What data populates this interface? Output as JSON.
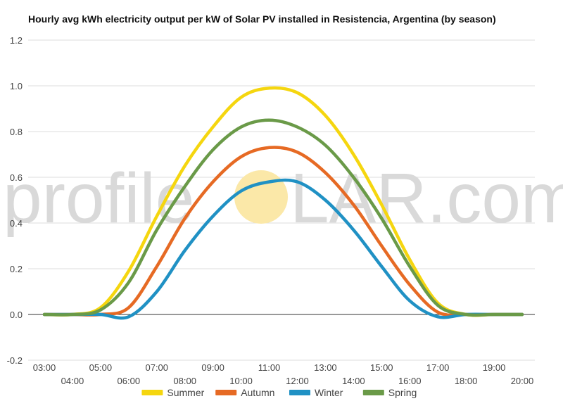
{
  "chart_data": {
    "type": "line",
    "title": "Hourly avg kWh electricity output per kW of Solar PV installed in Resistencia, Argentina (by season)",
    "xlabel": "",
    "ylabel": "",
    "x": [
      "03:00",
      "04:00",
      "05:00",
      "06:00",
      "07:00",
      "08:00",
      "09:00",
      "10:00",
      "11:00",
      "12:00",
      "13:00",
      "14:00",
      "15:00",
      "16:00",
      "17:00",
      "18:00",
      "19:00",
      "20:00"
    ],
    "ylim": [
      -0.2,
      1.2
    ],
    "yticks": [
      "-0.2",
      "0.0",
      "0.2",
      "0.4",
      "0.6",
      "0.8",
      "1.0",
      "1.2"
    ],
    "grid": true,
    "legend": "bottom",
    "series": [
      {
        "name": "Summer",
        "color": "#f5d60f",
        "values": [
          0,
          0,
          0.03,
          0.19,
          0.43,
          0.65,
          0.82,
          0.95,
          0.99,
          0.97,
          0.87,
          0.7,
          0.48,
          0.24,
          0.05,
          0,
          0,
          0
        ]
      },
      {
        "name": "Autumn",
        "color": "#e66a24",
        "values": [
          0,
          0,
          0,
          0.03,
          0.21,
          0.42,
          0.58,
          0.69,
          0.73,
          0.71,
          0.62,
          0.48,
          0.3,
          0.13,
          0.01,
          0,
          0,
          0
        ]
      },
      {
        "name": "Winter",
        "color": "#2091c4",
        "values": [
          0,
          0,
          0,
          -0.01,
          0.1,
          0.28,
          0.43,
          0.54,
          0.58,
          0.58,
          0.5,
          0.37,
          0.21,
          0.06,
          -0.01,
          0,
          0,
          0
        ]
      },
      {
        "name": "Spring",
        "color": "#6a9a48",
        "values": [
          0,
          0,
          0.02,
          0.14,
          0.37,
          0.56,
          0.72,
          0.82,
          0.85,
          0.82,
          0.74,
          0.6,
          0.42,
          0.21,
          0.04,
          0,
          0,
          0
        ]
      }
    ]
  },
  "watermark": {
    "prefix": "profile",
    "suffix": "LAR.com",
    "sun_color": "#fbe8a8"
  }
}
